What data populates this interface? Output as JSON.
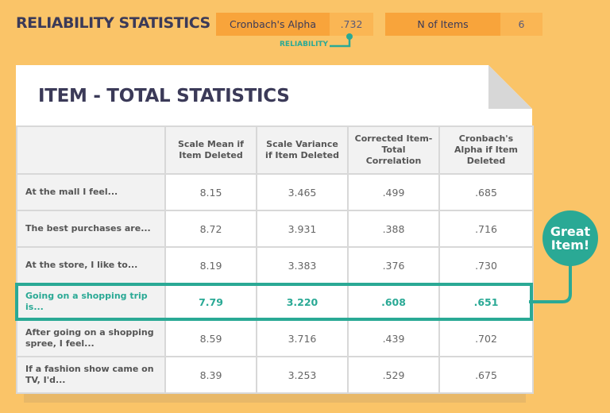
{
  "header": {
    "title": "RELIABILITY STATISTICS",
    "alpha_label": "Cronbach's Alpha",
    "alpha_value": ".732",
    "n_label": "N of Items",
    "n_value": "6",
    "annotation": "RELIABILITY"
  },
  "card": {
    "title": "ITEM - TOTAL STATISTICS"
  },
  "table": {
    "columns": [
      "",
      "Scale Mean if Item Deleted",
      "Scale Variance if Item Deleted",
      "Corrected Item- Total Correlation",
      "Cronbach's Alpha if Item Deleted"
    ],
    "rows": [
      [
        "At the mall I feel...",
        "8.15",
        "3.465",
        ".499",
        ".685"
      ],
      [
        "The best purchases are...",
        "8.72",
        "3.931",
        ".388",
        ".716"
      ],
      [
        "At the store, I like to...",
        "8.19",
        "3.383",
        ".376",
        ".730"
      ],
      [
        "Going on a shopping trip is...",
        "7.79",
        "3.220",
        ".608",
        ".651"
      ],
      [
        "After going on a shopping spree, I feel...",
        "8.59",
        "3.716",
        ".439",
        ".702"
      ],
      [
        "If a fashion show came on TV, I'd...",
        "8.39",
        "3.253",
        ".529",
        ".675"
      ]
    ],
    "highlighted_row": 3
  },
  "callout": {
    "text": "Great Item!"
  },
  "colors": {
    "background": "#fac468",
    "accent": "#2aa995",
    "title": "#3b3a58",
    "stat_label": "#f8a43b",
    "stat_value": "#fab654"
  }
}
